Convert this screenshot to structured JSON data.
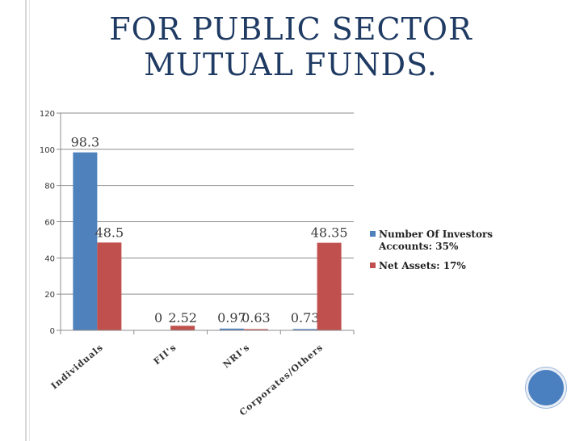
{
  "slide": {
    "title": "FOR PUBLIC SECTOR MUTUAL FUNDS."
  },
  "colors": {
    "title": "#1f3b63",
    "series1": "#4f81bd",
    "series2": "#c0504d",
    "accent_circle": "#4a7fc0"
  },
  "chart_data": {
    "type": "bar",
    "categories": [
      "Individuals",
      "FII's",
      "NRI's",
      "Corporates/Others"
    ],
    "series": [
      {
        "name": "Number Of Investors Accounts: 35%",
        "values": [
          98.3,
          0,
          0.97,
          0.73
        ]
      },
      {
        "name": "Net Assets: 17%",
        "values": [
          48.5,
          2.52,
          0.63,
          48.35
        ]
      }
    ],
    "data_labels": [
      [
        "98.3",
        "0",
        "0.97",
        "0.73"
      ],
      [
        "48.5",
        "2.52",
        "0.63",
        "48.35"
      ]
    ],
    "yticks": [
      0,
      20,
      40,
      60,
      80,
      100,
      120
    ],
    "ylim": [
      0,
      120
    ],
    "grid": true,
    "legend": "right"
  }
}
